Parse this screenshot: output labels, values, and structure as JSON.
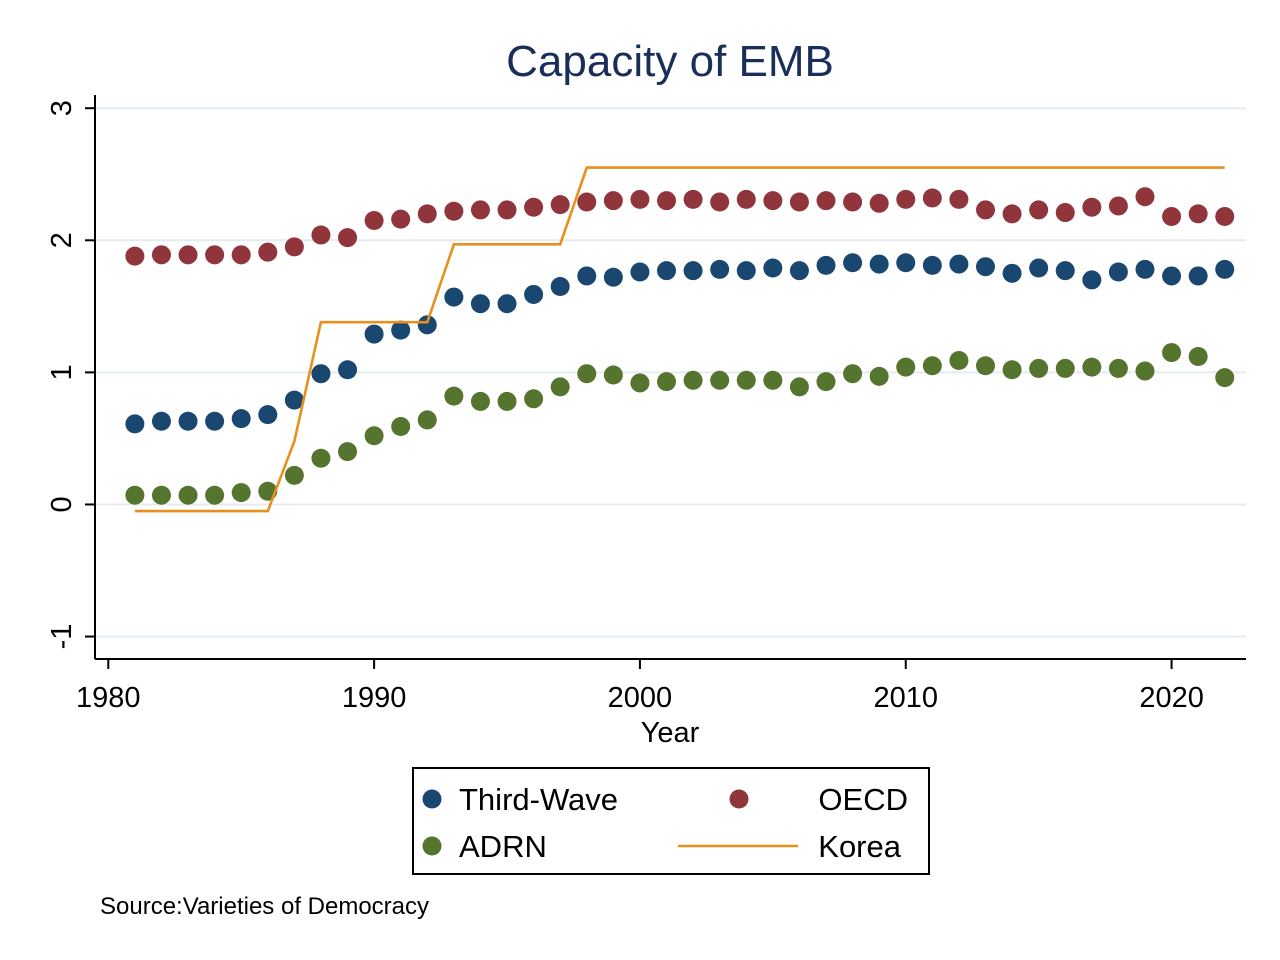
{
  "chart_data": {
    "type": "scatter",
    "title": "Capacity of EMB",
    "xlabel": "Year",
    "ylabel": "",
    "xlim": [
      1979.5,
      2022.8
    ],
    "ylim": [
      -1.17,
      3.1
    ],
    "x_ticks": [
      1980,
      1990,
      2000,
      2010,
      2020
    ],
    "x_tick_labels": [
      "1980",
      "1990",
      "2000",
      "2010",
      "2020"
    ],
    "y_ticks": [
      -1,
      0,
      1,
      2,
      3
    ],
    "y_tick_labels": [
      "-1",
      "0",
      "1",
      "2",
      "3"
    ],
    "grid": true,
    "legend_placement": "bottom",
    "source_note": "Source:Varieties of Democracy",
    "x": [
      1981,
      1982,
      1983,
      1984,
      1985,
      1986,
      1987,
      1988,
      1989,
      1990,
      1991,
      1992,
      1993,
      1994,
      1995,
      1996,
      1997,
      1998,
      1999,
      2000,
      2001,
      2002,
      2003,
      2004,
      2005,
      2006,
      2007,
      2008,
      2009,
      2010,
      2011,
      2012,
      2013,
      2014,
      2015,
      2016,
      2017,
      2018,
      2019,
      2020,
      2021,
      2022
    ],
    "series": [
      {
        "name": "Third-Wave",
        "kind": "scatter",
        "color": "#1a476f",
        "values": [
          0.61,
          0.63,
          0.63,
          0.63,
          0.65,
          0.68,
          0.79,
          0.99,
          1.02,
          1.29,
          1.32,
          1.36,
          1.57,
          1.52,
          1.52,
          1.59,
          1.65,
          1.73,
          1.72,
          1.76,
          1.77,
          1.77,
          1.78,
          1.77,
          1.79,
          1.77,
          1.81,
          1.83,
          1.82,
          1.83,
          1.81,
          1.82,
          1.8,
          1.75,
          1.79,
          1.77,
          1.7,
          1.76,
          1.78,
          1.73,
          1.73,
          1.78
        ]
      },
      {
        "name": "OECD",
        "kind": "scatter",
        "color": "#90353b",
        "values": [
          1.88,
          1.89,
          1.89,
          1.89,
          1.89,
          1.91,
          1.95,
          2.04,
          2.02,
          2.15,
          2.16,
          2.2,
          2.22,
          2.23,
          2.23,
          2.25,
          2.27,
          2.29,
          2.3,
          2.31,
          2.3,
          2.31,
          2.29,
          2.31,
          2.3,
          2.29,
          2.3,
          2.29,
          2.28,
          2.31,
          2.32,
          2.31,
          2.23,
          2.2,
          2.23,
          2.21,
          2.25,
          2.26,
          2.33,
          2.18,
          2.2,
          2.18
        ]
      },
      {
        "name": "ADRN",
        "kind": "scatter",
        "color": "#55752f",
        "values": [
          0.07,
          0.07,
          0.07,
          0.07,
          0.09,
          0.1,
          0.22,
          0.35,
          0.4,
          0.52,
          0.59,
          0.64,
          0.82,
          0.78,
          0.78,
          0.8,
          0.89,
          0.99,
          0.98,
          0.92,
          0.93,
          0.94,
          0.94,
          0.94,
          0.94,
          0.89,
          0.93,
          0.99,
          0.97,
          1.04,
          1.05,
          1.09,
          1.05,
          1.02,
          1.03,
          1.03,
          1.04,
          1.03,
          1.01,
          1.15,
          1.12,
          0.96
        ]
      },
      {
        "name": "Korea",
        "kind": "step-line",
        "color": "#e8901f",
        "values": [
          -0.05,
          -0.05,
          -0.05,
          -0.05,
          -0.05,
          -0.05,
          0.48,
          1.38,
          1.38,
          1.38,
          1.38,
          1.38,
          1.97,
          1.97,
          1.97,
          1.97,
          1.97,
          2.55,
          2.55,
          2.55,
          2.55,
          2.55,
          2.55,
          2.55,
          2.55,
          2.55,
          2.55,
          2.55,
          2.55,
          2.55,
          2.55,
          2.55,
          2.55,
          2.55,
          2.55,
          2.55,
          2.55,
          2.55,
          2.55,
          2.55,
          2.55,
          2.55
        ]
      }
    ]
  }
}
